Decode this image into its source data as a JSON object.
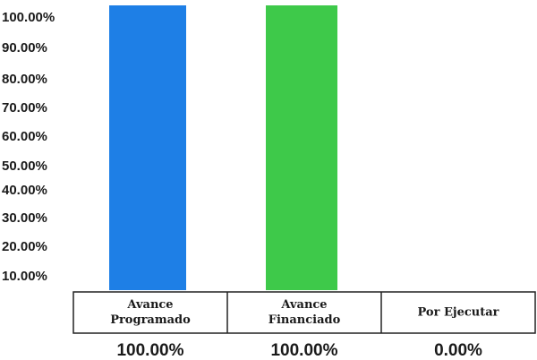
{
  "chart_data": {
    "type": "bar",
    "categories": [
      [
        "Avance",
        "Programado"
      ],
      [
        "Avance",
        "Financiado"
      ],
      [
        "Por Ejecutar"
      ]
    ],
    "values": [
      100.0,
      100.0,
      0.0
    ],
    "value_labels": [
      "100.00%",
      "100.00%",
      "0.00%"
    ],
    "y_tick_labels": [
      "100.00%",
      "90.00%",
      "80.00%",
      "70.00%",
      "60.00%",
      "50.00%",
      "40.00%",
      "30.00%",
      "20.00%",
      "10.00%"
    ],
    "bar_colors": [
      "#1e7fe6",
      "#3ec94a",
      "#3ec94a"
    ],
    "ylim": [
      0,
      100
    ],
    "grid": false,
    "title": "",
    "xlabel": "",
    "ylabel": ""
  }
}
